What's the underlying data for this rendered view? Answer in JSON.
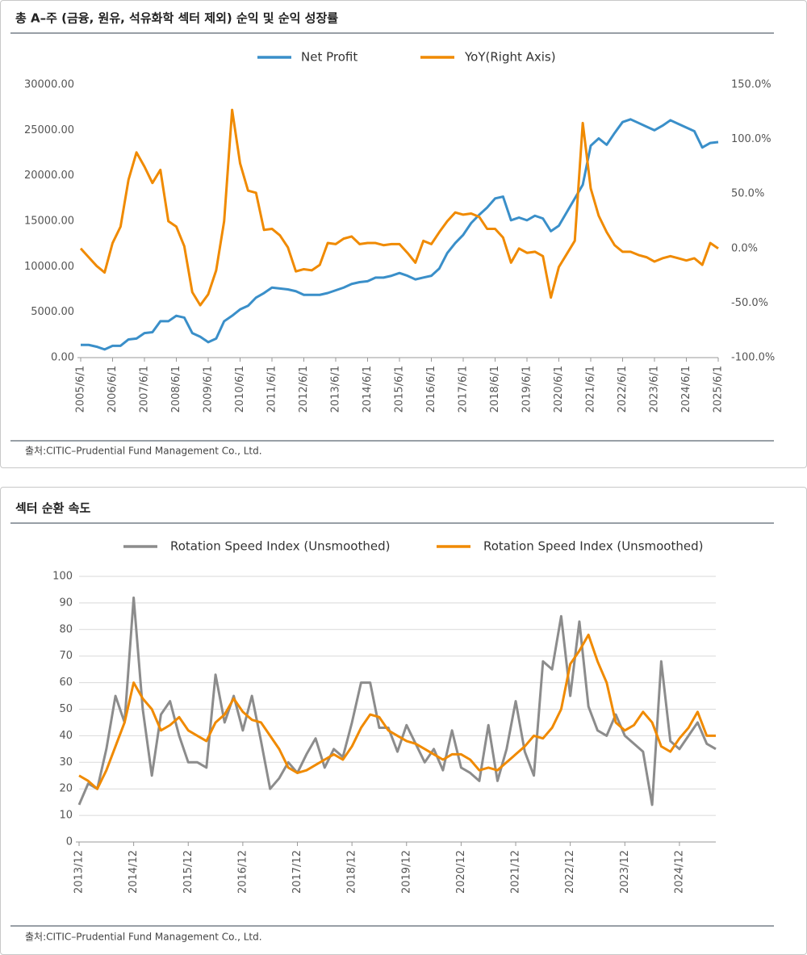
{
  "chart_data": [
    {
      "type": "line",
      "title": "총 A–주 (금융, 원유, 석유화학 섹터 제외) 순익 및 순익 성장률",
      "source": "출처:CITIC–Prudential Fund Management Co., Ltd.",
      "categories": [
        "2005/6/1",
        null,
        null,
        null,
        "2006/6/1",
        null,
        null,
        null,
        "2007/6/1",
        null,
        null,
        null,
        "2008/6/1",
        null,
        null,
        null,
        "2009/6/1",
        null,
        null,
        null,
        "2010/6/1",
        null,
        null,
        null,
        "2011/6/1",
        null,
        null,
        null,
        "2012/6/1",
        null,
        null,
        null,
        "2013/6/1",
        null,
        null,
        null,
        "2014/6/1",
        null,
        null,
        null,
        "2015/6/1",
        null,
        null,
        null,
        "2016/6/1",
        null,
        null,
        null,
        "2017/6/1",
        null,
        null,
        null,
        "2018/6/1",
        null,
        null,
        null,
        "2019/6/1",
        null,
        null,
        null,
        "2020/6/1",
        null,
        null,
        null,
        "2021/6/1",
        null,
        null,
        null,
        "2022/6/1",
        null,
        null,
        null,
        "2023/6/1",
        null,
        null,
        null,
        "2024/6/1",
        null,
        null,
        null,
        "2025/6/1"
      ],
      "series": [
        {
          "name": "Net Profit",
          "color": "#3a8fc9",
          "values": [
            1400,
            1400,
            1200,
            900,
            1300,
            1300,
            2000,
            2100,
            2700,
            2800,
            4000,
            4000,
            4600,
            4400,
            2700,
            2300,
            1700,
            2100,
            4000,
            4600,
            5300,
            5700,
            6600,
            7100,
            7700,
            7600,
            7500,
            7300,
            6900,
            6900,
            6900,
            7100,
            7400,
            7700,
            8100,
            8300,
            8400,
            8800,
            8800,
            9000,
            9300,
            9000,
            8600,
            8800,
            9000,
            9800,
            11500,
            12600,
            13500,
            14800,
            15700,
            16500,
            17500,
            17700,
            15100,
            15400,
            15100,
            15600,
            15300,
            13900,
            14500,
            16000,
            17500,
            19000,
            23300,
            24100,
            23400,
            24700,
            25900,
            26200,
            25800,
            25400,
            25000,
            25500,
            26100,
            25700,
            25300,
            24900,
            23100,
            23600,
            23700
          ]
        },
        {
          "name": "YoY(Right Axis)",
          "color": "#f08a00",
          "axis": "y2",
          "values": [
            0,
            -8,
            -16,
            -22,
            5,
            20,
            63,
            88,
            75,
            60,
            72,
            25,
            20,
            2,
            -40,
            -52,
            -42,
            -20,
            25,
            127,
            78,
            53,
            51,
            17,
            18,
            12,
            1,
            -21,
            -19,
            -20,
            -15,
            5,
            4,
            9,
            11,
            4,
            5,
            5,
            3,
            4,
            4,
            -4,
            -13,
            7,
            4,
            15,
            25,
            33,
            31,
            32,
            29,
            18,
            18,
            10,
            -13,
            0,
            -4,
            -3,
            -7,
            -45,
            -17,
            -5,
            7,
            115,
            55,
            30,
            15,
            3,
            -3,
            -3,
            -6,
            -8,
            -12,
            -9,
            -7,
            -9,
            -11,
            -9,
            -15,
            5,
            0
          ]
        }
      ],
      "ylim": [
        0,
        30000
      ],
      "yticks": [
        {
          "value": 0,
          "label": "0.00"
        },
        {
          "value": 5000,
          "label": "5000.00"
        },
        {
          "value": 10000,
          "label": "10000.00"
        },
        {
          "value": 15000,
          "label": "15000.00"
        },
        {
          "value": 20000,
          "label": "20000.00"
        },
        {
          "value": 25000,
          "label": "25000.00"
        },
        {
          "value": 30000,
          "label": "30000.00"
        }
      ],
      "y2lim": [
        -100,
        150
      ],
      "y2ticks": [
        {
          "value": -100,
          "label": "-100.0%"
        },
        {
          "value": -50,
          "label": "-50.0%"
        },
        {
          "value": 0,
          "label": "0.0%"
        },
        {
          "value": 50,
          "label": "50.0%"
        },
        {
          "value": 100,
          "label": "100.0%"
        },
        {
          "value": 150,
          "label": "150.0%"
        }
      ],
      "grid": false,
      "legend": "top"
    },
    {
      "type": "line",
      "title": "섹터 순환 속도",
      "source": "출처:CITIC–Prudential Fund Management Co., Ltd.",
      "categories": [
        "2013/12",
        null,
        null,
        null,
        null,
        null,
        "2014/12",
        null,
        null,
        null,
        null,
        null,
        "2015/12",
        null,
        null,
        null,
        null,
        null,
        "2016/12",
        null,
        null,
        null,
        null,
        null,
        "2017/12",
        null,
        null,
        null,
        null,
        null,
        "2018/12",
        null,
        null,
        null,
        null,
        null,
        "2019/12",
        null,
        null,
        null,
        null,
        null,
        "2020/12",
        null,
        null,
        null,
        null,
        null,
        "2021/12",
        null,
        null,
        null,
        null,
        null,
        "2022/12",
        null,
        null,
        null,
        null,
        null,
        "2023/12",
        null,
        null,
        null,
        null,
        null,
        "2024/12",
        null,
        null,
        null,
        null
      ],
      "series": [
        {
          "name": "Rotation Speed Index (Unsmoothed)",
          "color": "#8c8c8c",
          "values": [
            14,
            22,
            20,
            35,
            55,
            45,
            92,
            50,
            25,
            48,
            53,
            40,
            30,
            30,
            28,
            63,
            45,
            55,
            42,
            55,
            38,
            20,
            24,
            30,
            26,
            33,
            39,
            28,
            35,
            32,
            45,
            60,
            60,
            43,
            43,
            34,
            44,
            37,
            30,
            35,
            27,
            42,
            28,
            26,
            23,
            44,
            23,
            35,
            53,
            34,
            25,
            68,
            65,
            85,
            55,
            83,
            51,
            42,
            40,
            48,
            40,
            37,
            34,
            14,
            68,
            38,
            35,
            40,
            45,
            37,
            35
          ]
        },
        {
          "name": "Rotation Speed Index (Unsmoothed)",
          "color": "#f08a00",
          "values": [
            25,
            23,
            20,
            27,
            36,
            45,
            60,
            54,
            50,
            42,
            44,
            47,
            42,
            40,
            38,
            45,
            48,
            54,
            49,
            46,
            45,
            40,
            35,
            28,
            26,
            27,
            29,
            31,
            33,
            31,
            36,
            43,
            48,
            47,
            42,
            40,
            38,
            37,
            35,
            33,
            31,
            33,
            33,
            31,
            27,
            28,
            27,
            30,
            33,
            36,
            40,
            39,
            43,
            50,
            67,
            72,
            78,
            68,
            60,
            45,
            42,
            44,
            49,
            45,
            36,
            34,
            39,
            43,
            49,
            40,
            40
          ]
        }
      ],
      "ylim": [
        0,
        100
      ],
      "yticks": [
        0,
        10,
        20,
        30,
        40,
        50,
        60,
        70,
        80,
        90,
        100
      ],
      "grid": true,
      "legend": "top"
    }
  ]
}
